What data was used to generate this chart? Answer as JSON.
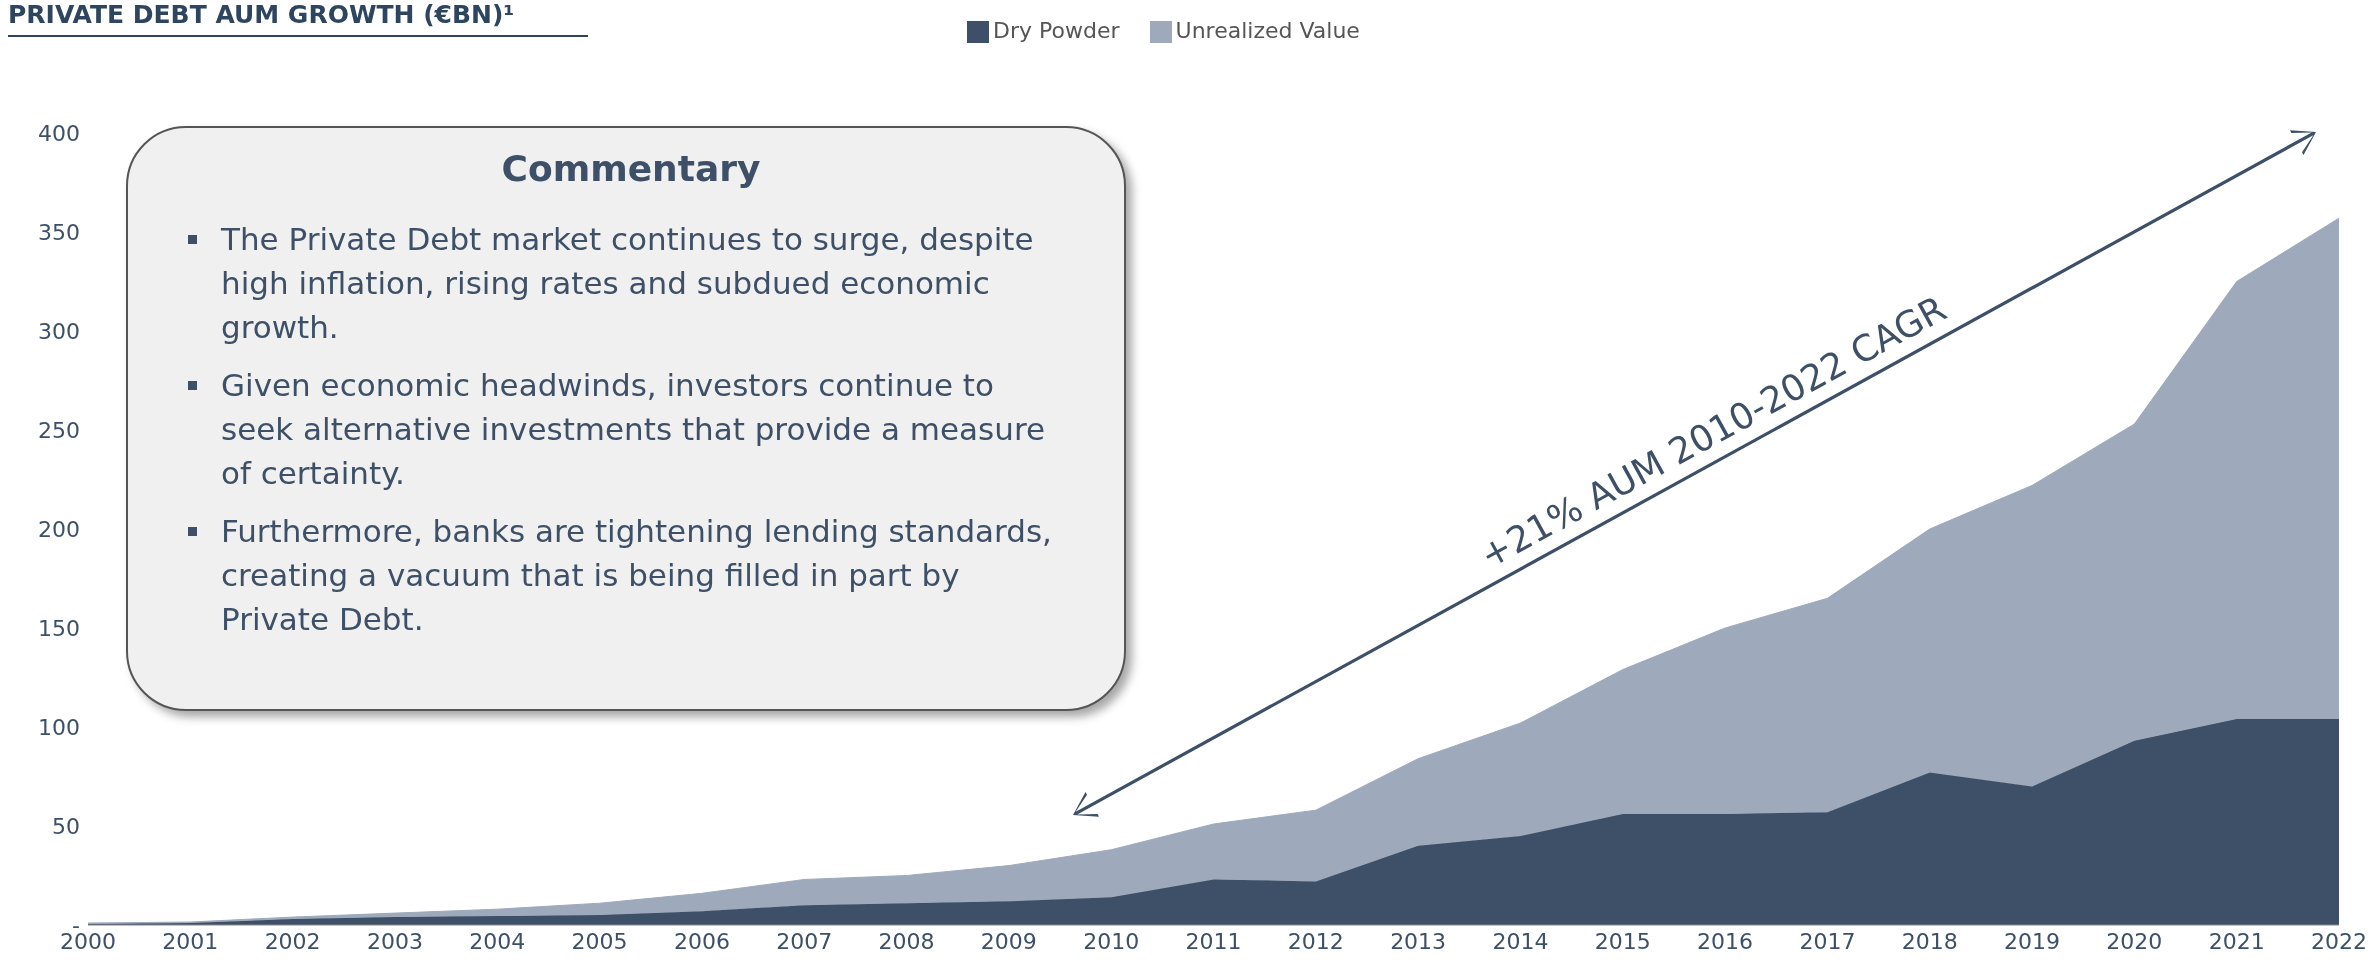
{
  "chart_data": {
    "type": "area",
    "stacked": true,
    "title": "PRIVATE DEBT AUM GROWTH (€BN)¹",
    "categories": [
      "2000",
      "2001",
      "2002",
      "2003",
      "2004",
      "2005",
      "2006",
      "2007",
      "2008",
      "2009",
      "2010",
      "2011",
      "2012",
      "2013",
      "2014",
      "2015",
      "2016",
      "2017",
      "2018",
      "2019",
      "2020",
      "2021",
      "2022"
    ],
    "series": [
      {
        "name": "Dry Powder",
        "color": "#3d5068",
        "values": [
          0.5,
          1,
          3,
          4,
          4.5,
          5,
          7,
          10,
          11,
          12,
          14,
          23,
          22,
          40,
          45,
          56,
          56,
          57,
          77,
          70,
          93,
          104,
          104
        ]
      },
      {
        "name": "Unrealized Value",
        "color": "#9eaabb",
        "values": [
          0.5,
          0.5,
          1,
          2,
          3.5,
          6,
          9,
          13,
          14,
          18,
          24,
          28,
          36,
          44,
          57,
          73,
          94,
          108,
          123,
          152,
          160,
          221,
          253
        ]
      }
    ],
    "ylim": [
      0,
      400
    ],
    "yticks": [
      {
        "value": 0,
        "label": "-"
      },
      50,
      100,
      150,
      200,
      250,
      300,
      350,
      400
    ],
    "legend": "top",
    "annotations": [
      "Commentary",
      "The Private Debt market continues to surge, despite high inflation, rising rates and subdued economic growth.",
      "Given economic headwinds, investors continue to seek alternative investments that provide a measure of certainty.",
      "Furthermore, banks are tightening lending standards, creating a vacuum that is being filled in part by Private Debt.",
      "+21% AUM 2010-2022 CAGR"
    ]
  }
}
